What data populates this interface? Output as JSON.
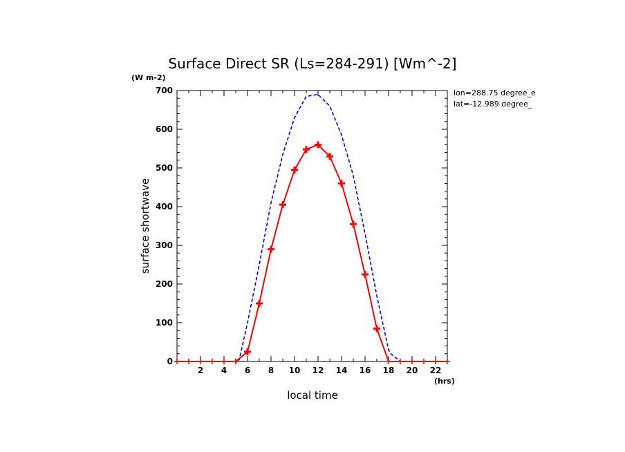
{
  "chart_data": {
    "type": "line",
    "title": "Surface Direct SR (Ls=284-291) [Wm^-2]",
    "units_label": "(W m-2)",
    "xlabel": "local time",
    "x_units": "(hrs)",
    "ylabel": "surface shortwave",
    "xlim": [
      0,
      23
    ],
    "ylim": [
      0,
      700
    ],
    "x_ticks": [
      2,
      4,
      6,
      8,
      10,
      12,
      14,
      16,
      18,
      20,
      22
    ],
    "y_ticks": [
      0,
      100,
      200,
      300,
      400,
      500,
      600,
      700
    ],
    "location": {
      "lon": "lon=288.75 degree_e",
      "lat": "lat=-12.989 degree_"
    },
    "series": [
      {
        "style": "dashed",
        "color": "#0000ff",
        "x": [
          0,
          1,
          2,
          3,
          4,
          5,
          5.3,
          6,
          7,
          8,
          9,
          10,
          11,
          12,
          13,
          14,
          15,
          16,
          17,
          18,
          18.2,
          19,
          20,
          21,
          22,
          23
        ],
        "values": [
          0,
          0,
          0,
          0,
          0,
          0,
          5,
          100,
          250,
          410,
          535,
          630,
          685,
          690,
          660,
          585,
          480,
          330,
          170,
          30,
          20,
          0,
          0,
          0,
          0,
          0
        ]
      },
      {
        "style": "solid-cross",
        "color": "#ff0000",
        "x": [
          0,
          1,
          2,
          3,
          4,
          5,
          5.0,
          6.0,
          7.0,
          8.0,
          9.0,
          10.0,
          11.0,
          12.0,
          13.0,
          14.0,
          15.0,
          16.0,
          17.0,
          18.0,
          19,
          20,
          21,
          22,
          23
        ],
        "values": [
          0,
          0,
          0,
          0,
          0,
          0,
          0,
          25,
          150,
          290,
          405,
          495,
          548,
          560,
          530,
          460,
          355,
          225,
          85,
          0,
          0,
          0,
          0,
          0,
          0
        ]
      }
    ]
  }
}
